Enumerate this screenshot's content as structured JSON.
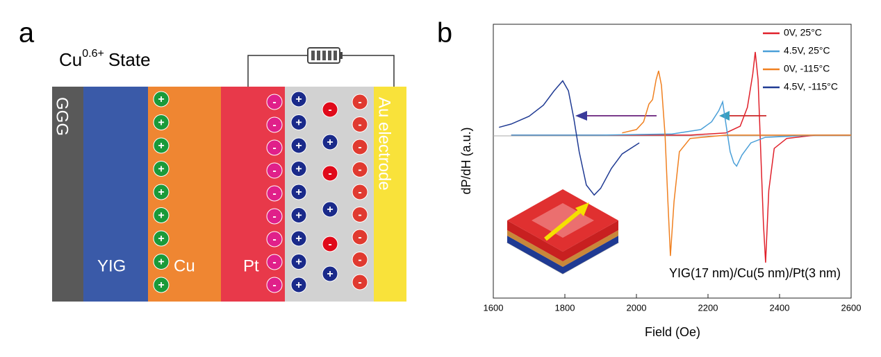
{
  "panel_a": {
    "label": "a",
    "state": {
      "base": "Cu",
      "sup": "0.6+",
      "rest": "State"
    },
    "layers": {
      "ggg": "GGG",
      "yig": "YIG",
      "cu": "Cu",
      "pt": "Pt",
      "au": "Au electrode"
    },
    "ions": {
      "plus": "+",
      "minus": "-"
    }
  },
  "chart_data": {
    "type": "line",
    "panel_label": "b",
    "x_label": "Field (Oe)",
    "y_label": "dP/dH (a.u.)",
    "annotation": "YIG(17 nm)/Cu(5 nm)/Pt(3 nm)",
    "xlim": [
      1600,
      2600
    ],
    "xticks": [
      1600,
      1800,
      2000,
      2200,
      2400,
      2600
    ],
    "ylim": [
      -1.47,
      1.0
    ],
    "series": [
      {
        "name": "0V, 25°C",
        "color": "#e0202a",
        "x": [
          1650,
          1900,
          2150,
          2250,
          2290,
          2310,
          2325,
          2332,
          2340,
          2348,
          2355,
          2361,
          2370,
          2385,
          2420,
          2500,
          2600
        ],
        "values": [
          0,
          0,
          0,
          0.02,
          0.08,
          0.25,
          0.55,
          0.75,
          0.5,
          -0.2,
          -0.8,
          -1.15,
          -0.5,
          -0.12,
          -0.03,
          0,
          0
        ]
      },
      {
        "name": "4.5V, 25°C",
        "color": "#4a9fd8",
        "x": [
          1650,
          1900,
          2100,
          2180,
          2210,
          2230,
          2241,
          2250,
          2262,
          2272,
          2280,
          2295,
          2320,
          2360,
          2500,
          2600
        ],
        "values": [
          0,
          0,
          0.01,
          0.05,
          0.12,
          0.22,
          0.3,
          0.1,
          -0.15,
          -0.25,
          -0.28,
          -0.18,
          -0.07,
          -0.02,
          0,
          0
        ]
      },
      {
        "name": "0V, -115°C",
        "color": "#f08020",
        "x": [
          1960,
          2000,
          2020,
          2035,
          2045,
          2055,
          2062,
          2070,
          2080,
          2088,
          2095,
          2105,
          2120,
          2150,
          2250,
          2400,
          2600
        ],
        "values": [
          0.02,
          0.05,
          0.12,
          0.28,
          0.32,
          0.5,
          0.58,
          0.45,
          0.0,
          -0.6,
          -1.09,
          -0.6,
          -0.15,
          -0.03,
          0,
          0,
          0
        ]
      },
      {
        "name": "4.5V, -115°C",
        "color": "#1f3a93",
        "x": [
          1616,
          1650,
          1700,
          1740,
          1770,
          1794,
          1810,
          1825,
          1840,
          1860,
          1882,
          1900,
          1930,
          1960,
          2008
        ],
        "values": [
          0.07,
          0.1,
          0.17,
          0.27,
          0.4,
          0.49,
          0.4,
          0.15,
          -0.15,
          -0.45,
          -0.54,
          -0.48,
          -0.3,
          -0.17,
          -0.07
        ]
      }
    ]
  }
}
